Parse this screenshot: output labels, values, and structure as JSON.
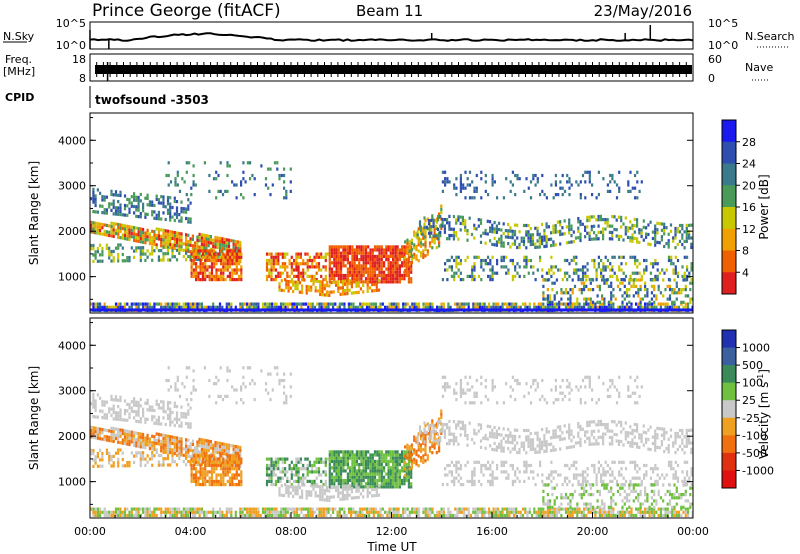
{
  "header": {
    "station": "Prince George (fitACF)",
    "beam": "Beam 11",
    "date": "23/May/2016"
  },
  "noise_panel": {
    "left_label": "N.Sky",
    "left_tick_top": "10^5",
    "left_tick_bottom": "10^0",
    "right_label": "N.Search",
    "right_tick_top": "10^5",
    "right_tick_bottom": "10^0"
  },
  "freq_panel": {
    "left_label_line1": "Freq.",
    "left_label_line2": "[MHz]",
    "left_tick_top": "18",
    "left_tick_bottom": "8",
    "right_label": "Nave",
    "right_tick_top": "60",
    "right_tick_bottom": "0"
  },
  "cpid": {
    "label": "CPID",
    "value": "twofsound -3503"
  },
  "chart_data": [
    {
      "type": "heatmap",
      "name": "power",
      "ylabel": "Slant Range [km]",
      "ylim": [
        200,
        4600
      ],
      "yticks": [
        "1000",
        "2000",
        "3000",
        "4000"
      ],
      "xlim": [
        0,
        24
      ],
      "colorbar_label": "Power [dB]",
      "colorbar_ticks": [
        "4",
        "8",
        "12",
        "16",
        "20",
        "24",
        "28"
      ],
      "colorbar_colors": [
        "#1a1af0",
        "#2f4fb0",
        "#3a7a8a",
        "#4a9a5a",
        "#c8c800",
        "#f0a000",
        "#f06000",
        "#e02020"
      ],
      "ground_scatter_range_km": 300
    },
    {
      "type": "heatmap",
      "name": "velocity",
      "ylabel": "Slant Range [km]",
      "ylim": [
        200,
        4600
      ],
      "yticks": [
        "1000",
        "2000",
        "3000",
        "4000"
      ],
      "xlim": [
        0,
        24
      ],
      "xlabel": "Time UT",
      "xticks": [
        "00:00",
        "04:00",
        "08:00",
        "12:00",
        "16:00",
        "20:00",
        "00:00"
      ],
      "colorbar_label": "Velocity [m s",
      "colorbar_label_sup": "-1",
      "colorbar_label_end": "]",
      "colorbar_ticks": [
        "1000",
        "500",
        "100",
        "25",
        "-25",
        "-100",
        "-500",
        "-1000"
      ],
      "colorbar_colors": [
        "#2030b0",
        "#3a60a0",
        "#3a8a5a",
        "#70c040",
        "#c8c8c8",
        "#f0a020",
        "#f07010",
        "#e03010",
        "#e01010"
      ]
    }
  ]
}
